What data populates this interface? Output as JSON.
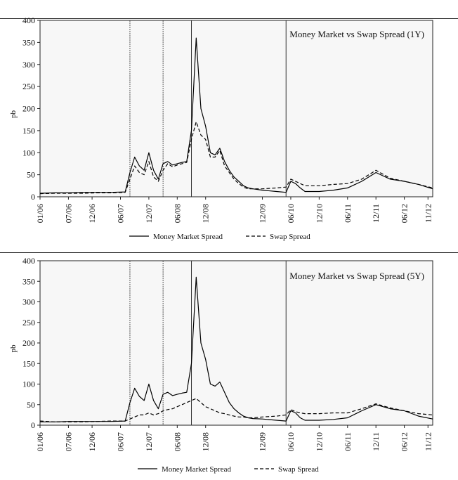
{
  "colors": {
    "money_market": "#000000",
    "swap": "#000000",
    "plot_bg": "#f7f7f7",
    "event_line": "#333333"
  },
  "chart_data": [
    {
      "type": "line",
      "title": "Money Market vs Swap Spread (1Y)",
      "ylabel": "pb",
      "xlabel": "",
      "ylim": [
        0,
        400
      ],
      "yticks": [
        "0",
        "50",
        "100",
        "150",
        "200",
        "250",
        "300",
        "350",
        "400"
      ],
      "xlim": [
        "2006-01",
        "2012-12"
      ],
      "xticks": [
        {
          "label": "01/06",
          "t": "2006-01"
        },
        {
          "label": "07/06",
          "t": "2006-07"
        },
        {
          "label": "12/06",
          "t": "2006-12"
        },
        {
          "label": "06/07",
          "t": "2007-06"
        },
        {
          "label": "12/07",
          "t": "2007-12"
        },
        {
          "label": "06/08",
          "t": "2008-06"
        },
        {
          "label": "12/08",
          "t": "2008-12"
        },
        {
          "label": "12/09",
          "t": "2009-12"
        },
        {
          "label": "06/10",
          "t": "2010-06"
        },
        {
          "label": "12/10",
          "t": "2010-12"
        },
        {
          "label": "06/11",
          "t": "2011-06"
        },
        {
          "label": "12/11",
          "t": "2011-12"
        },
        {
          "label": "06/12",
          "t": "2012-06"
        },
        {
          "label": "11/12",
          "t": "2012-11"
        }
      ],
      "vlines": [
        "2007-08",
        "2008-03",
        "2008-09",
        "2010-05"
      ],
      "legend": [
        "Money Market Spread",
        "Swap Spread"
      ],
      "legend_position": "bottom",
      "grid": false,
      "series": [
        {
          "name": "Money Market Spread",
          "style": "solid",
          "points": [
            [
              "2006-01",
              8
            ],
            [
              "2006-04",
              9
            ],
            [
              "2006-07",
              9
            ],
            [
              "2006-10",
              10
            ],
            [
              "2007-01",
              10
            ],
            [
              "2007-04",
              10
            ],
            [
              "2007-07",
              11
            ],
            [
              "2007-08",
              55
            ],
            [
              "2007-09",
              90
            ],
            [
              "2007-10",
              70
            ],
            [
              "2007-11",
              60
            ],
            [
              "2007-12",
              100
            ],
            [
              "2008-01",
              60
            ],
            [
              "2008-02",
              40
            ],
            [
              "2008-03",
              75
            ],
            [
              "2008-04",
              80
            ],
            [
              "2008-05",
              72
            ],
            [
              "2008-06",
              75
            ],
            [
              "2008-07",
              78
            ],
            [
              "2008-08",
              80
            ],
            [
              "2008-09",
              150
            ],
            [
              "2008-10",
              360
            ],
            [
              "2008-11",
              200
            ],
            [
              "2008-12",
              160
            ],
            [
              "2009-01",
              100
            ],
            [
              "2009-02",
              95
            ],
            [
              "2009-03",
              110
            ],
            [
              "2009-04",
              80
            ],
            [
              "2009-05",
              60
            ],
            [
              "2009-06",
              45
            ],
            [
              "2009-07",
              35
            ],
            [
              "2009-08",
              25
            ],
            [
              "2009-09",
              20
            ],
            [
              "2009-10",
              18
            ],
            [
              "2009-12",
              15
            ],
            [
              "2010-03",
              12
            ],
            [
              "2010-05",
              10
            ],
            [
              "2010-06",
              35
            ],
            [
              "2010-07",
              30
            ],
            [
              "2010-08",
              20
            ],
            [
              "2010-09",
              12
            ],
            [
              "2010-12",
              12
            ],
            [
              "2011-03",
              15
            ],
            [
              "2011-06",
              20
            ],
            [
              "2011-09",
              35
            ],
            [
              "2011-12",
              55
            ],
            [
              "2012-03",
              40
            ],
            [
              "2012-06",
              35
            ],
            [
              "2012-09",
              28
            ],
            [
              "2012-12",
              18
            ]
          ]
        },
        {
          "name": "Swap Spread",
          "style": "dashed",
          "points": [
            [
              "2006-01",
              7
            ],
            [
              "2006-04",
              8
            ],
            [
              "2006-07",
              8
            ],
            [
              "2006-10",
              8
            ],
            [
              "2007-01",
              9
            ],
            [
              "2007-04",
              9
            ],
            [
              "2007-07",
              10
            ],
            [
              "2007-08",
              40
            ],
            [
              "2007-09",
              70
            ],
            [
              "2007-10",
              55
            ],
            [
              "2007-11",
              50
            ],
            [
              "2007-12",
              80
            ],
            [
              "2008-01",
              45
            ],
            [
              "2008-02",
              35
            ],
            [
              "2008-03",
              60
            ],
            [
              "2008-04",
              75
            ],
            [
              "2008-05",
              68
            ],
            [
              "2008-06",
              72
            ],
            [
              "2008-07",
              75
            ],
            [
              "2008-08",
              78
            ],
            [
              "2008-09",
              130
            ],
            [
              "2008-10",
              170
            ],
            [
              "2008-11",
              140
            ],
            [
              "2008-12",
              130
            ],
            [
              "2009-01",
              90
            ],
            [
              "2009-02",
              90
            ],
            [
              "2009-03",
              105
            ],
            [
              "2009-04",
              70
            ],
            [
              "2009-05",
              55
            ],
            [
              "2009-06",
              40
            ],
            [
              "2009-07",
              30
            ],
            [
              "2009-08",
              22
            ],
            [
              "2009-09",
              18
            ],
            [
              "2009-10",
              18
            ],
            [
              "2009-12",
              18
            ],
            [
              "2010-03",
              20
            ],
            [
              "2010-05",
              22
            ],
            [
              "2010-06",
              40
            ],
            [
              "2010-07",
              35
            ],
            [
              "2010-08",
              30
            ],
            [
              "2010-09",
              25
            ],
            [
              "2010-12",
              25
            ],
            [
              "2011-03",
              28
            ],
            [
              "2011-06",
              30
            ],
            [
              "2011-09",
              40
            ],
            [
              "2011-12",
              60
            ],
            [
              "2012-03",
              42
            ],
            [
              "2012-06",
              35
            ],
            [
              "2012-09",
              28
            ],
            [
              "2012-12",
              20
            ]
          ]
        }
      ]
    },
    {
      "type": "line",
      "title": "Money Market vs Swap Spread (5Y)",
      "ylabel": "pb",
      "xlabel": "",
      "ylim": [
        0,
        400
      ],
      "yticks": [
        "0",
        "50",
        "100",
        "150",
        "200",
        "250",
        "300",
        "350",
        "400"
      ],
      "xlim": [
        "2006-01",
        "2012-12"
      ],
      "xticks": [
        {
          "label": "01/06",
          "t": "2006-01"
        },
        {
          "label": "07/06",
          "t": "2006-07"
        },
        {
          "label": "12/06",
          "t": "2006-12"
        },
        {
          "label": "06/07",
          "t": "2007-06"
        },
        {
          "label": "12/07",
          "t": "2007-12"
        },
        {
          "label": "06/08",
          "t": "2008-06"
        },
        {
          "label": "12/08",
          "t": "2008-12"
        },
        {
          "label": "12/09",
          "t": "2009-12"
        },
        {
          "label": "06/10",
          "t": "2010-06"
        },
        {
          "label": "12/10",
          "t": "2010-12"
        },
        {
          "label": "06/11",
          "t": "2011-06"
        },
        {
          "label": "12/11",
          "t": "2011-12"
        },
        {
          "label": "06/12",
          "t": "2012-06"
        },
        {
          "label": "11/12",
          "t": "2012-11"
        }
      ],
      "vlines": [
        "2007-08",
        "2008-03",
        "2008-09",
        "2010-05"
      ],
      "legend": [
        "Money Market Spread",
        "Swap Spread"
      ],
      "legend_position": "bottom",
      "grid": false,
      "series": [
        {
          "name": "Money Market Spread",
          "style": "solid",
          "points": [
            [
              "2006-01",
              8
            ],
            [
              "2006-04",
              8
            ],
            [
              "2006-07",
              9
            ],
            [
              "2006-10",
              9
            ],
            [
              "2007-01",
              9
            ],
            [
              "2007-04",
              9
            ],
            [
              "2007-07",
              10
            ],
            [
              "2007-08",
              55
            ],
            [
              "2007-09",
              90
            ],
            [
              "2007-10",
              70
            ],
            [
              "2007-11",
              60
            ],
            [
              "2007-12",
              100
            ],
            [
              "2008-01",
              60
            ],
            [
              "2008-02",
              40
            ],
            [
              "2008-03",
              75
            ],
            [
              "2008-04",
              80
            ],
            [
              "2008-05",
              72
            ],
            [
              "2008-06",
              75
            ],
            [
              "2008-07",
              78
            ],
            [
              "2008-08",
              80
            ],
            [
              "2008-09",
              150
            ],
            [
              "2008-10",
              360
            ],
            [
              "2008-11",
              200
            ],
            [
              "2008-12",
              160
            ],
            [
              "2009-01",
              100
            ],
            [
              "2009-02",
              95
            ],
            [
              "2009-03",
              105
            ],
            [
              "2009-04",
              80
            ],
            [
              "2009-05",
              55
            ],
            [
              "2009-06",
              40
            ],
            [
              "2009-07",
              30
            ],
            [
              "2009-08",
              22
            ],
            [
              "2009-09",
              18
            ],
            [
              "2009-10",
              16
            ],
            [
              "2009-12",
              15
            ],
            [
              "2010-03",
              12
            ],
            [
              "2010-05",
              10
            ],
            [
              "2010-06",
              35
            ],
            [
              "2010-07",
              30
            ],
            [
              "2010-08",
              18
            ],
            [
              "2010-09",
              12
            ],
            [
              "2010-12",
              12
            ],
            [
              "2011-03",
              14
            ],
            [
              "2011-06",
              18
            ],
            [
              "2011-09",
              35
            ],
            [
              "2011-12",
              50
            ],
            [
              "2012-03",
              40
            ],
            [
              "2012-06",
              35
            ],
            [
              "2012-09",
              22
            ],
            [
              "2012-12",
              15
            ]
          ]
        },
        {
          "name": "Swap Spread",
          "style": "dashed",
          "points": [
            [
              "2006-01",
              10
            ],
            [
              "2006-04",
              8
            ],
            [
              "2006-07",
              8
            ],
            [
              "2006-10",
              8
            ],
            [
              "2007-01",
              9
            ],
            [
              "2007-04",
              10
            ],
            [
              "2007-07",
              10
            ],
            [
              "2007-08",
              15
            ],
            [
              "2007-09",
              20
            ],
            [
              "2007-10",
              25
            ],
            [
              "2007-11",
              25
            ],
            [
              "2007-12",
              30
            ],
            [
              "2008-01",
              25
            ],
            [
              "2008-02",
              28
            ],
            [
              "2008-03",
              35
            ],
            [
              "2008-04",
              38
            ],
            [
              "2008-05",
              40
            ],
            [
              "2008-06",
              45
            ],
            [
              "2008-07",
              50
            ],
            [
              "2008-08",
              55
            ],
            [
              "2008-09",
              60
            ],
            [
              "2008-10",
              65
            ],
            [
              "2008-11",
              55
            ],
            [
              "2008-12",
              45
            ],
            [
              "2009-01",
              40
            ],
            [
              "2009-02",
              35
            ],
            [
              "2009-03",
              30
            ],
            [
              "2009-04",
              28
            ],
            [
              "2009-05",
              25
            ],
            [
              "2009-06",
              22
            ],
            [
              "2009-07",
              20
            ],
            [
              "2009-08",
              20
            ],
            [
              "2009-09",
              18
            ],
            [
              "2009-10",
              18
            ],
            [
              "2009-12",
              20
            ],
            [
              "2010-03",
              22
            ],
            [
              "2010-05",
              25
            ],
            [
              "2010-06",
              38
            ],
            [
              "2010-07",
              33
            ],
            [
              "2010-08",
              30
            ],
            [
              "2010-09",
              28
            ],
            [
              "2010-12",
              28
            ],
            [
              "2011-03",
              30
            ],
            [
              "2011-06",
              30
            ],
            [
              "2011-09",
              40
            ],
            [
              "2011-12",
              52
            ],
            [
              "2012-03",
              42
            ],
            [
              "2012-06",
              35
            ],
            [
              "2012-09",
              28
            ],
            [
              "2012-12",
              25
            ]
          ]
        }
      ]
    }
  ]
}
